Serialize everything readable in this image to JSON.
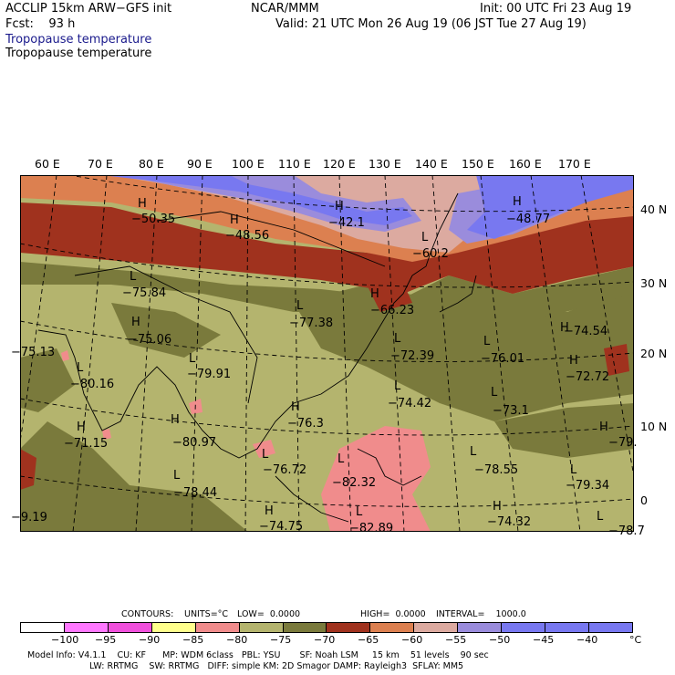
{
  "header": {
    "model": "ACCLIP 15km ARW−GFS init",
    "center": "NCAR/MMM",
    "init": "Init: 00 UTC Fri 23 Aug 19",
    "fcst": "Fcst:    93 h",
    "valid": "Valid: 21 UTC Mon 26 Aug 19 (06 JST Tue 27 Aug 19)",
    "field_title_blue": "Tropopause temperature",
    "field_title_black": "Tropopause temperature"
  },
  "map": {
    "lon_labels": [
      "60 E",
      "70 E",
      "80 E",
      "90 E",
      "100 E",
      "110 E",
      "120 E",
      "130 E",
      "140 E",
      "150 E",
      "160 E",
      "170 E"
    ],
    "lat_labels": [
      "40 N",
      "30 N",
      "20 N",
      "10 N",
      "0"
    ],
    "colors": {
      "olive_dark": "#7a7a3c",
      "olive": "#b4b46e",
      "brown": "#a0321e",
      "orange": "#dc8050",
      "tan": "#dcaaa0",
      "lavender": "#9a8cdc",
      "blue": "#7878f0",
      "pink": "#f08c8c"
    },
    "extrema": [
      {
        "mark": "H",
        "value": "−50.35"
      },
      {
        "mark": "H",
        "value": "−48.56"
      },
      {
        "mark": "H",
        "value": "−42.1"
      },
      {
        "mark": "H",
        "value": "−48.77"
      },
      {
        "mark": "L",
        "value": "−60.2"
      },
      {
        "mark": "L",
        "value": "−75.84"
      },
      {
        "mark": "H",
        "value": "−75.06"
      },
      {
        "mark": "L",
        "value": "−77.38"
      },
      {
        "mark": "H",
        "value": "−66.23"
      },
      {
        "mark": "L",
        "value": "−72.39"
      },
      {
        "mark": "L",
        "value": "−76.01"
      },
      {
        "mark": "H",
        "value": "−74.54"
      },
      {
        "mark": "H",
        "value": "−72.72"
      },
      {
        "mark": "L",
        "value": "−80.16"
      },
      {
        "mark": "L",
        "value": "−79.91"
      },
      {
        "mark": "H",
        "value": "−76.3"
      },
      {
        "mark": "L",
        "value": "−74.42"
      },
      {
        "mark": "L",
        "value": "−73.1"
      },
      {
        "mark": "H",
        "value": "−71.15"
      },
      {
        "mark": "H",
        "value": "−80.97"
      },
      {
        "mark": "L",
        "value": "−76.72"
      },
      {
        "mark": "L",
        "value": "−82.32"
      },
      {
        "mark": "L",
        "value": "−78.55"
      },
      {
        "mark": "L",
        "value": "−79.34"
      },
      {
        "mark": "L",
        "value": "−78.44"
      },
      {
        "mark": "H",
        "value": "−74.75"
      },
      {
        "mark": "L",
        "value": "−82.89"
      },
      {
        "mark": "H",
        "value": "−74.32"
      },
      {
        "mark": "H",
        "value": "−79."
      },
      {
        "mark": "",
        "value": "−75.13"
      },
      {
        "mark": "",
        "value": "−9.19"
      },
      {
        "mark": "L",
        "value": "−78.7"
      }
    ]
  },
  "contours": {
    "label": "CONTOURS:",
    "units": "UNITS=°C",
    "low": "LOW=  0.0000",
    "high": "HIGH=  0.0000",
    "interval": "INTERVAL=    1000.0"
  },
  "colorbar": {
    "colors": [
      "#ffffff",
      "#ff78ff",
      "#f050dc",
      "#ffff8c",
      "#f08c8c",
      "#b4b46e",
      "#7a7a3c",
      "#a0321e",
      "#dc8050",
      "#dcaaa0",
      "#9a8cdc",
      "#7878f0",
      "#7878f0",
      "#7878f0"
    ],
    "labels": [
      "−100",
      "−95",
      "−90",
      "−85",
      "−80",
      "−75",
      "−70",
      "−65",
      "−60",
      "−55",
      "−50",
      "−45",
      "−40"
    ],
    "unit": "°C"
  },
  "footer": {
    "line1": "Model Info: V4.1.1    CU: KF      MP: WDM 6class   PBL: YSU       SF: Noah LSM     15 km    51 levels    90 sec",
    "line2": "LW: RRTMG    SW: RRTMG   DIFF: simple KM: 2D Smagor DAMP: Rayleigh3  SFLAY: MM5"
  }
}
